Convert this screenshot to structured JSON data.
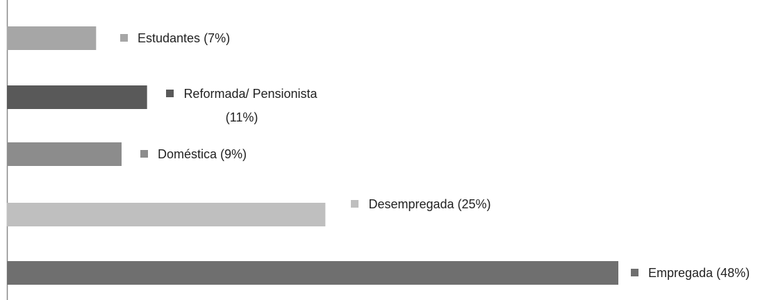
{
  "chart_data": {
    "type": "bar",
    "orientation": "horizontal",
    "categories": [
      "Estudantes (7%)",
      "Reformada/ Pensionista (11%)",
      "Doméstica (9%)",
      "Desempregada (25%)",
      "Empregada (48%)"
    ],
    "values": [
      7,
      11,
      9,
      25,
      48
    ],
    "colors": [
      "#a6a6a6",
      "#595959",
      "#8c8c8c",
      "#bfbfbf",
      "#6f6f6f"
    ]
  }
}
